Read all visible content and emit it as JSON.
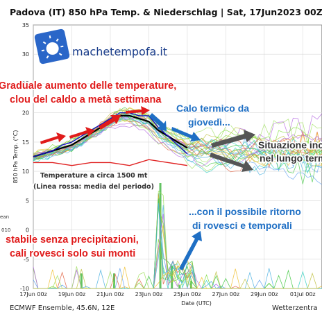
{
  "title": "Padova  (IT)  850 hPa Temp. & Niederschlag | Sat, 17Jun2023 00Z",
  "footer_left": "ECMWF Ensemble, 45.6N, 12E",
  "footer_right": "Wetterzentra",
  "logo_text": "machetempofa.it",
  "side_labels": [
    "ean",
    "010"
  ],
  "annotations": {
    "red_top_line1": "Graduale aumento delle temperature,",
    "red_top_line2": "clou del caldo a metà settimana",
    "blue_top_line1": "Calo termico da",
    "blue_top_line2": "giovedì...",
    "gray_right_line1": "Situazione inc",
    "gray_right_line2": "nel lungo term",
    "note_line1": "Temperature a circa 1500 mt",
    "note_line2": "(Linea rossa: media del periodo)",
    "blue_bottom_line1": "...con il possibile ritorno",
    "blue_bottom_line2": "di rovesci e temporali",
    "red_bottom_line1": "stabile senza precipitazioni,",
    "red_bottom_line2": "cali rovesci solo sui monti"
  },
  "colors": {
    "mean": "#000000",
    "control": "#1010c0",
    "climate": "#e02020",
    "members": [
      "#7ddc3a",
      "#40c840",
      "#4ab0e0",
      "#f0c030",
      "#b060e0",
      "#e06040",
      "#30d0c0",
      "#a0e060",
      "#60a0f0",
      "#c0c040"
    ],
    "annotation_red": "#e01b1b",
    "annotation_blue": "#1f6fc4",
    "arrow_gray": "#555555"
  },
  "chart_data": {
    "type": "line",
    "title": "Padova  (IT)  850 hPa Temp. & Niederschlag | Sat, 17Jun2023 00Z",
    "xlabel": "Date (UTC)",
    "ylabel": "850 hPa Temp. (°C)",
    "ylim": [
      -10,
      35
    ],
    "yticks": [
      -10,
      -5,
      0,
      5,
      10,
      15,
      20,
      25,
      30,
      35
    ],
    "x_ticks": [
      "17Jun 00z",
      "19Jun 00z",
      "21Jun 00z",
      "23Jun 00z",
      "25Jun 00z",
      "27Jun 00z",
      "29Jun 00z",
      "01Jul 00z"
    ],
    "x_days": [
      17,
      19,
      21,
      23,
      25,
      27,
      29,
      31
    ],
    "xlim": [
      17,
      32
    ],
    "grid": true,
    "series": [
      {
        "role": "mean",
        "x": [
          17,
          17.5,
          18,
          18.5,
          19,
          19.5,
          20,
          20.5,
          21,
          21.5,
          22,
          22.5,
          23,
          23.5,
          24,
          24.5,
          25
        ],
        "values": [
          12.5,
          13,
          13.5,
          14,
          14.5,
          15.5,
          16.5,
          17.5,
          18.5,
          19.5,
          19.5,
          19,
          18.5,
          17,
          16,
          15,
          14
        ]
      },
      {
        "role": "control",
        "x": [
          17,
          17.5,
          18,
          18.5,
          19,
          19.5,
          20,
          20.5,
          21,
          21.5,
          22,
          22.5,
          23,
          23.5,
          24,
          24.5,
          25
        ],
        "values": [
          12.5,
          13,
          13.5,
          14.5,
          15,
          16,
          17,
          18,
          19,
          20,
          20,
          19.5,
          19.5,
          17.5,
          16,
          14.5,
          13
        ]
      },
      {
        "role": "climate",
        "x": [
          17,
          18,
          19,
          20,
          21,
          22,
          23,
          24,
          25
        ],
        "values": [
          11.5,
          11.5,
          11,
          11.5,
          11.5,
          11,
          12,
          11.5,
          11
        ]
      }
    ],
    "precip_bars": {
      "x": [
        19.5,
        21.2,
        23.6,
        24.2,
        24.6,
        25.2
      ],
      "values": [
        2,
        2,
        14,
        3,
        0.5,
        1
      ]
    }
  }
}
